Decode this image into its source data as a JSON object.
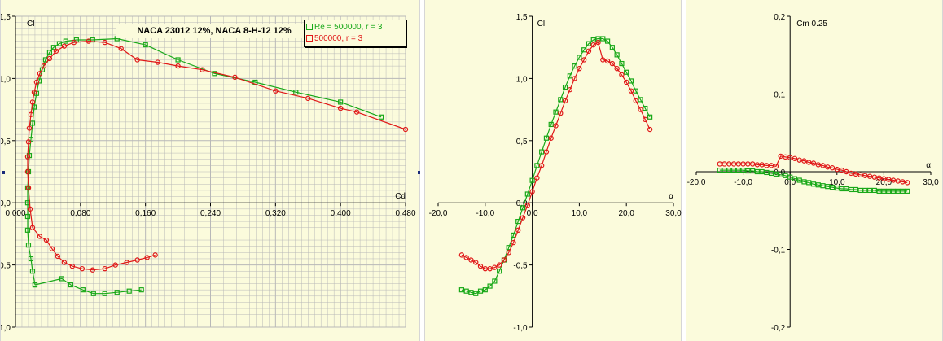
{
  "colors": {
    "green": "#18a818",
    "red": "#e01818",
    "grid": "#b8b8b8",
    "panel": "#fbfbdc"
  },
  "title": "NACA 23012   12%, NACA 8-H-12   12%",
  "legend": [
    {
      "label": "Re = 500000, r = 3",
      "color": "#18a818"
    },
    {
      "label": "500000, r = 3",
      "color": "#e01818"
    }
  ],
  "chart_data": [
    {
      "type": "scatter",
      "xlabel": "Cd",
      "ylabel": "Cl",
      "xlim": [
        0,
        0.48
      ],
      "ylim": [
        -1.0,
        1.5
      ],
      "xticks": [
        "0,000",
        "0,080",
        "0,160",
        "0,240",
        "0,320",
        "0,400",
        "0,480"
      ],
      "yticks": [
        "-1,0",
        "-0,5",
        "0,0",
        "0,5",
        "1,0",
        "1,5"
      ],
      "grid": true,
      "series": [
        {
          "name": "Re = 500000, r = 3",
          "x": [
            0.024,
            0.021,
            0.019,
            0.016,
            0.015,
            0.015,
            0.015,
            0.015,
            0.016,
            0.017,
            0.019,
            0.021,
            0.023,
            0.026,
            0.029,
            0.033,
            0.037,
            0.042,
            0.047,
            0.054,
            0.062,
            0.075,
            0.095,
            0.125,
            0.16,
            0.2,
            0.245,
            0.295,
            0.345,
            0.4,
            0.45
          ],
          "y": [
            -0.66,
            -0.55,
            -0.45,
            -0.34,
            -0.22,
            -0.11,
            0.0,
            0.12,
            0.25,
            0.38,
            0.51,
            0.64,
            0.77,
            0.88,
            0.98,
            1.07,
            1.15,
            1.21,
            1.25,
            1.28,
            1.3,
            1.31,
            1.31,
            1.32,
            1.27,
            1.15,
            1.04,
            0.97,
            0.89,
            0.81,
            0.69
          ]
        },
        {
          "name": "Re = 500000, r = 3",
          "x": [
            0.024,
            0.057,
            0.068,
            0.083,
            0.096,
            0.11,
            0.125,
            0.14,
            0.155
          ],
          "y": [
            -0.66,
            -0.61,
            -0.66,
            -0.7,
            -0.73,
            -0.73,
            -0.72,
            -0.71,
            -0.7
          ]
        },
        {
          "name": "500000, r = 3",
          "x": [
            0.016,
            0.015,
            0.015,
            0.016,
            0.017,
            0.019,
            0.021,
            0.023,
            0.026,
            0.03,
            0.035,
            0.042,
            0.05,
            0.06,
            0.072,
            0.09,
            0.11,
            0.13,
            0.15,
            0.175,
            0.2,
            0.23,
            0.27,
            0.32,
            0.36,
            0.4,
            0.42,
            0.48
          ],
          "y": [
            0.12,
            0.25,
            0.37,
            0.49,
            0.6,
            0.71,
            0.81,
            0.89,
            0.97,
            1.04,
            1.1,
            1.16,
            1.22,
            1.26,
            1.29,
            1.3,
            1.29,
            1.24,
            1.15,
            1.13,
            1.1,
            1.07,
            1.01,
            0.9,
            0.84,
            0.76,
            0.73,
            0.59
          ]
        },
        {
          "name": "500000, r = 3",
          "x": [
            0.016,
            0.018,
            0.021,
            0.03,
            0.038,
            0.045,
            0.052,
            0.06,
            0.07,
            0.082,
            0.095,
            0.11,
            0.123,
            0.137,
            0.15,
            0.162,
            0.172
          ],
          "y": [
            0.12,
            -0.05,
            -0.2,
            -0.27,
            -0.3,
            -0.37,
            -0.43,
            -0.48,
            -0.51,
            -0.53,
            -0.54,
            -0.53,
            -0.5,
            -0.48,
            -0.46,
            -0.44,
            -0.42
          ]
        }
      ]
    },
    {
      "type": "line",
      "xlabel": "α",
      "ylabel": "Cl",
      "xlim": [
        -20,
        30
      ],
      "ylim": [
        -1.0,
        1.5
      ],
      "xticks": [
        "-20,0",
        "-10,0",
        "0,0",
        "10,0",
        "20,0",
        "30,0"
      ],
      "yticks": [
        "-1,0",
        "-0,5",
        "0,0",
        "0,5",
        "1,0",
        "1,5"
      ],
      "grid": false,
      "series": [
        {
          "name": "Re = 500000, r = 3",
          "x": [
            -15,
            -14,
            -13,
            -12,
            -11,
            -10,
            -9,
            -8,
            -7,
            -6,
            -5,
            -4,
            -3,
            -2,
            -1,
            0,
            1,
            2,
            3,
            4,
            5,
            6,
            7,
            8,
            9,
            10,
            11,
            12,
            13,
            14,
            15,
            16,
            17,
            18,
            19,
            20,
            21,
            22,
            23,
            24,
            25
          ],
          "y": [
            -0.7,
            -0.71,
            -0.72,
            -0.73,
            -0.71,
            -0.7,
            -0.67,
            -0.63,
            -0.55,
            -0.46,
            -0.36,
            -0.26,
            -0.15,
            -0.04,
            0.07,
            0.18,
            0.3,
            0.41,
            0.52,
            0.63,
            0.73,
            0.83,
            0.93,
            1.02,
            1.1,
            1.17,
            1.23,
            1.28,
            1.31,
            1.32,
            1.32,
            1.3,
            1.25,
            1.19,
            1.12,
            1.05,
            0.98,
            0.9,
            0.83,
            0.76,
            0.69
          ]
        },
        {
          "name": "500000, r = 3",
          "x": [
            -15,
            -14,
            -13,
            -12,
            -11,
            -10,
            -9,
            -8,
            -7,
            -6,
            -5,
            -4,
            -3,
            -2,
            -1,
            0,
            1,
            2,
            3,
            4,
            5,
            6,
            7,
            8,
            9,
            10,
            11,
            12,
            13,
            14,
            15,
            16,
            17,
            18,
            19,
            20,
            21,
            22,
            23,
            24,
            25
          ],
          "y": [
            -0.42,
            -0.44,
            -0.46,
            -0.48,
            -0.51,
            -0.53,
            -0.53,
            -0.52,
            -0.5,
            -0.46,
            -0.4,
            -0.32,
            -0.22,
            -0.12,
            -0.02,
            0.09,
            0.2,
            0.3,
            0.41,
            0.52,
            0.62,
            0.72,
            0.82,
            0.91,
            1.0,
            1.08,
            1.15,
            1.22,
            1.27,
            1.29,
            1.15,
            1.14,
            1.12,
            1.08,
            1.03,
            0.97,
            0.9,
            0.82,
            0.75,
            0.67,
            0.59
          ]
        }
      ]
    },
    {
      "type": "line",
      "xlabel": "α",
      "ylabel": "Cm 0.25",
      "xlim": [
        -20,
        30
      ],
      "ylim": [
        -0.2,
        0.2
      ],
      "xticks": [
        "-20,0",
        "-10,0",
        "0,0",
        "10,0",
        "20,0",
        "30,0"
      ],
      "yticks": [
        "-0,2",
        "-0,1",
        "0,0",
        "0,1",
        "0,2"
      ],
      "grid": false,
      "series": [
        {
          "name": "Re = 500000, r = 3",
          "x": [
            -15,
            -14,
            -13,
            -12,
            -11,
            -10,
            -9,
            -8,
            -7,
            -6,
            -5,
            -4,
            -3,
            -2,
            -1,
            0,
            1,
            2,
            3,
            4,
            5,
            6,
            7,
            8,
            9,
            10,
            11,
            12,
            13,
            14,
            15,
            16,
            17,
            18,
            19,
            20,
            21,
            22,
            23,
            24,
            25
          ],
          "y": [
            0.002,
            0.002,
            0.002,
            0.002,
            0.002,
            0.002,
            0.001,
            0.001,
            0.0,
            0.0,
            -0.001,
            -0.002,
            -0.003,
            -0.004,
            -0.005,
            -0.007,
            -0.009,
            -0.011,
            -0.013,
            -0.014,
            -0.016,
            -0.017,
            -0.018,
            -0.019,
            -0.02,
            -0.021,
            -0.022,
            -0.022,
            -0.023,
            -0.023,
            -0.024,
            -0.024,
            -0.024,
            -0.024,
            -0.025,
            -0.025,
            -0.025,
            -0.025,
            -0.025,
            -0.025,
            -0.025
          ]
        },
        {
          "name": "500000, r = 3",
          "x": [
            -15,
            -14,
            -13,
            -12,
            -11,
            -10,
            -9,
            -8,
            -7,
            -6,
            -5,
            -4,
            -3,
            -2,
            -1,
            0,
            1,
            2,
            3,
            4,
            5,
            6,
            7,
            8,
            9,
            10,
            11,
            12,
            13,
            14,
            15,
            16,
            17,
            18,
            19,
            20,
            21,
            22,
            23,
            24,
            25
          ],
          "y": [
            0.01,
            0.01,
            0.01,
            0.01,
            0.01,
            0.01,
            0.01,
            0.01,
            0.009,
            0.009,
            0.008,
            0.008,
            0.007,
            0.02,
            0.019,
            0.018,
            0.017,
            0.015,
            0.014,
            0.012,
            0.011,
            0.009,
            0.008,
            0.006,
            0.005,
            0.003,
            0.002,
            0.0,
            -0.002,
            -0.003,
            -0.004,
            -0.005,
            -0.006,
            -0.007,
            -0.008,
            -0.009,
            -0.01,
            -0.011,
            -0.012,
            -0.013,
            -0.014
          ]
        }
      ]
    }
  ]
}
